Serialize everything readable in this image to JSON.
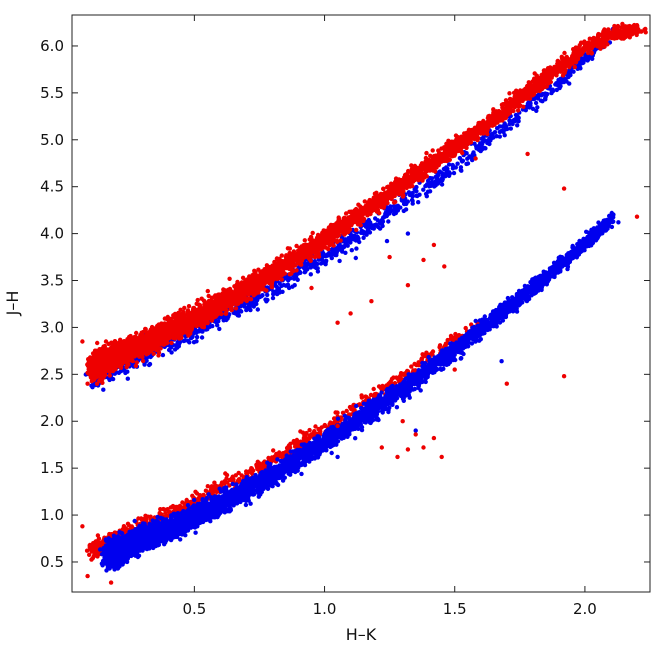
{
  "chart_data": {
    "type": "scatter",
    "title": "",
    "xlabel": "H–K",
    "ylabel": "J–H",
    "xlim": [
      0.03,
      2.25
    ],
    "ylim": [
      0.18,
      6.33
    ],
    "xticks": [
      0.5,
      1.0,
      1.5,
      2.0
    ],
    "xtick_labels": [
      "0.5",
      "1.0",
      "1.5",
      "2.0"
    ],
    "yticks": [
      0.5,
      1.0,
      1.5,
      2.0,
      2.5,
      3.0,
      3.5,
      4.0,
      4.5,
      5.0,
      5.5,
      6.0
    ],
    "ytick_labels": [
      "0.5",
      "1.0",
      "1.5",
      "2.0",
      "2.5",
      "3.0",
      "3.5",
      "4.0",
      "4.5",
      "5.0",
      "5.5",
      "6.0"
    ],
    "grid": false,
    "legend": "none",
    "series": [
      {
        "color": "#0000ee",
        "sequences": [
          {
            "x": [
              0.12,
              0.2,
              0.3,
              0.4,
              0.5,
              0.6,
              0.7,
              0.8,
              0.9,
              1.0,
              1.1,
              1.2,
              1.3,
              1.4,
              1.5,
              1.6,
              1.7,
              1.8,
              1.9,
              2.0,
              2.1
            ],
            "y": [
              2.5,
              2.62,
              2.72,
              2.86,
              2.97,
              3.12,
              3.26,
              3.42,
              3.58,
              3.76,
              3.94,
              4.13,
              4.32,
              4.52,
              4.72,
              4.94,
              5.15,
              5.39,
              5.6,
              5.86,
              6.12
            ],
            "spread": 0.12,
            "count": 1400
          },
          {
            "x": [
              0.18,
              0.3,
              0.4,
              0.5,
              0.6,
              0.7,
              0.8,
              0.9,
              1.0,
              1.1,
              1.2,
              1.3,
              1.4,
              1.5,
              1.6,
              1.7,
              1.8,
              1.9,
              2.0,
              2.1
            ],
            "y": [
              0.58,
              0.75,
              0.86,
              0.98,
              1.12,
              1.27,
              1.42,
              1.6,
              1.77,
              1.96,
              2.15,
              2.34,
              2.55,
              2.76,
              2.98,
              3.2,
              3.42,
              3.65,
              3.9,
              4.14
            ],
            "spread": 0.12,
            "count": 5200
          }
        ],
        "outliers": [
          {
            "x": 1.12,
            "y": 3.74
          },
          {
            "x": 1.24,
            "y": 3.92
          },
          {
            "x": 1.32,
            "y": 4.0
          },
          {
            "x": 1.05,
            "y": 1.62
          },
          {
            "x": 1.68,
            "y": 2.64
          },
          {
            "x": 1.35,
            "y": 1.9
          }
        ]
      },
      {
        "color": "#ee0000",
        "sequences": [
          {
            "x": [
              0.12,
              0.2,
              0.3,
              0.4,
              0.5,
              0.6,
              0.7,
              0.8,
              0.9,
              1.0,
              1.1,
              1.2,
              1.3,
              1.4,
              1.5,
              1.6,
              1.7,
              1.8,
              1.9,
              2.0,
              2.1,
              2.2
            ],
            "y": [
              2.58,
              2.7,
              2.82,
              2.96,
              3.1,
              3.25,
              3.41,
              3.58,
              3.76,
              3.94,
              4.13,
              4.32,
              4.52,
              4.72,
              4.92,
              5.12,
              5.33,
              5.55,
              5.77,
              5.98,
              6.12,
              6.18
            ],
            "spread": 0.12,
            "count": 5200
          },
          {
            "x": [
              0.12,
              0.2,
              0.3,
              0.4,
              0.5,
              0.6,
              0.7,
              0.8,
              0.9,
              1.0,
              1.1,
              1.2,
              1.3,
              1.4,
              1.5,
              1.6
            ],
            "y": [
              0.62,
              0.74,
              0.88,
              1.0,
              1.14,
              1.28,
              1.42,
              1.6,
              1.75,
              1.93,
              2.1,
              2.3,
              2.48,
              2.68,
              2.88,
              3.05
            ],
            "spread": 0.09,
            "count": 900
          }
        ],
        "outliers": [
          {
            "x": 0.07,
            "y": 2.85
          },
          {
            "x": 0.09,
            "y": 2.4
          },
          {
            "x": 0.07,
            "y": 0.88
          },
          {
            "x": 0.09,
            "y": 0.35
          },
          {
            "x": 0.18,
            "y": 0.28
          },
          {
            "x": 1.58,
            "y": 4.8
          },
          {
            "x": 1.78,
            "y": 4.85
          },
          {
            "x": 1.92,
            "y": 4.48
          },
          {
            "x": 2.2,
            "y": 4.18
          },
          {
            "x": 1.25,
            "y": 3.75
          },
          {
            "x": 1.32,
            "y": 3.45
          },
          {
            "x": 1.38,
            "y": 3.72
          },
          {
            "x": 1.42,
            "y": 3.88
          },
          {
            "x": 1.46,
            "y": 3.65
          },
          {
            "x": 1.18,
            "y": 3.28
          },
          {
            "x": 1.1,
            "y": 3.15
          },
          {
            "x": 0.95,
            "y": 3.42
          },
          {
            "x": 1.05,
            "y": 3.05
          },
          {
            "x": 1.3,
            "y": 2.0
          },
          {
            "x": 1.38,
            "y": 1.72
          },
          {
            "x": 1.42,
            "y": 1.82
          },
          {
            "x": 1.45,
            "y": 1.62
          },
          {
            "x": 1.35,
            "y": 1.86
          },
          {
            "x": 1.32,
            "y": 1.7
          },
          {
            "x": 1.22,
            "y": 1.72
          },
          {
            "x": 1.28,
            "y": 1.62
          },
          {
            "x": 1.05,
            "y": 1.95
          },
          {
            "x": 1.7,
            "y": 2.4
          },
          {
            "x": 1.92,
            "y": 2.48
          },
          {
            "x": 1.5,
            "y": 2.55
          }
        ]
      }
    ]
  }
}
